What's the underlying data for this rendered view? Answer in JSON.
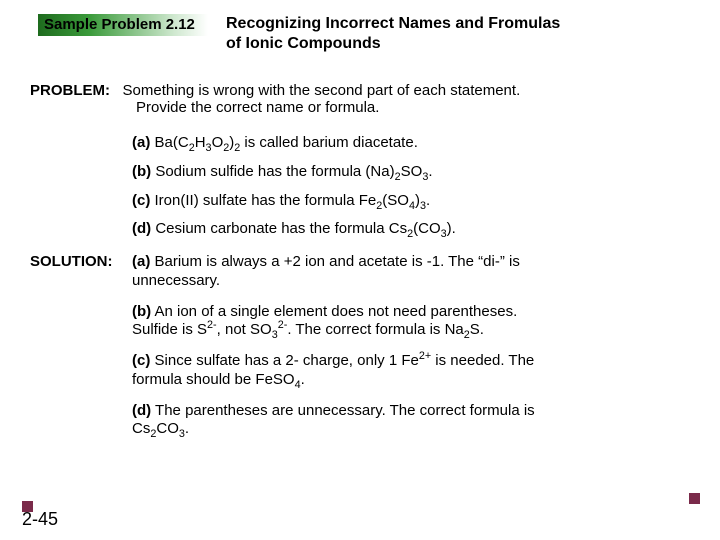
{
  "header": {
    "badge": "Sample Problem 2.12",
    "title_line1": "Recognizing Incorrect Names and Fromulas",
    "title_line2": "of Ionic Compounds"
  },
  "problem": {
    "label": "PROBLEM:",
    "text_line1": "Something is wrong with the second part of each statement.",
    "text_line2": "Provide the correct name or formula."
  },
  "parts": {
    "a": {
      "tag": "(a)",
      "pre": " Ba(C",
      "mid1": "H",
      "mid2": "O",
      "mid3": ")",
      "post": " is called barium diacetate."
    },
    "b": {
      "tag": "(b)",
      "pre": " Sodium sulfide has the formula (Na)",
      "mid": "SO",
      "post": "."
    },
    "c": {
      "tag": "(c)",
      "pre": " Iron(II) sulfate has the formula Fe",
      "mid1": "(SO",
      "mid2": ")",
      "post": "."
    },
    "d": {
      "tag": "(d)",
      "pre": " Cesium carbonate has the formula Cs",
      "mid1": "(CO",
      "mid2": ").",
      "post": ""
    }
  },
  "solution": {
    "label": "SOLUTION:",
    "a": {
      "tag": "(a)",
      "text1": " Barium is always a +2 ion and acetate is -1. The “di-” is",
      "text2": "unnecessary."
    },
    "b": {
      "tag": "(b)",
      "t1": " An ion of a single element does not need parentheses.",
      "t2a": "Sulfide is S",
      "t2b": ", not SO",
      "t2c": ". The correct formula is Na",
      "t2d": "S."
    },
    "c": {
      "tag": "(c)",
      "t1": " Since sulfate has a 2- charge, only 1 Fe",
      "t2": " is needed. The",
      "t3": "formula should be FeSO",
      "t4": "."
    },
    "d": {
      "tag": "(d)",
      "t1": " The parentheses are unnecessary. The correct formula is",
      "t2a": "Cs",
      "t2b": "CO",
      "t2c": "."
    }
  },
  "page": "2-45",
  "colors": {
    "square": "#7a2a4a"
  }
}
